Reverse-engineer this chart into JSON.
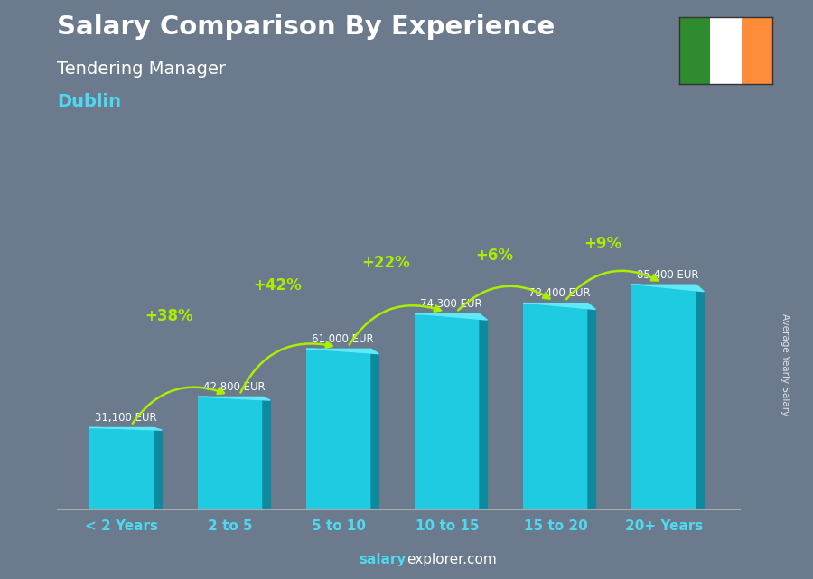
{
  "title_line1": "Salary Comparison By Experience",
  "title_line2": "Tendering Manager",
  "title_line3": "Dublin",
  "categories": [
    "< 2 Years",
    "2 to 5",
    "5 to 10",
    "10 to 15",
    "15 to 20",
    "20+ Years"
  ],
  "values": [
    31100,
    42800,
    61000,
    74300,
    78400,
    85400
  ],
  "salary_labels": [
    "31,100 EUR",
    "42,800 EUR",
    "61,000 EUR",
    "74,300 EUR",
    "78,400 EUR",
    "85,400 EUR"
  ],
  "pct_labels": [
    null,
    "+38%",
    "+42%",
    "+22%",
    "+6%",
    "+9%"
  ],
  "bar_color_face": "#1ecbe1",
  "bar_color_right": "#0e8a9e",
  "bar_color_top": "#5ee8f8",
  "bg_color": "#6b7b8d",
  "text_color_white": "#ffffff",
  "text_color_cyan": "#4dd9f0",
  "text_color_green": "#aaee00",
  "ylabel": "Average Yearly Salary",
  "footer_salary": "salary",
  "footer_explorer": "explorer.com",
  "ylim": [
    0,
    110000
  ],
  "bar_width": 0.6,
  "flag_colors": [
    "#2e8b2e",
    "#ffffff",
    "#ff8c38"
  ],
  "xtick_color": "#4dd9f0",
  "salary_label_color": "#ffffff",
  "pct_arrow_color": "#aaee00"
}
